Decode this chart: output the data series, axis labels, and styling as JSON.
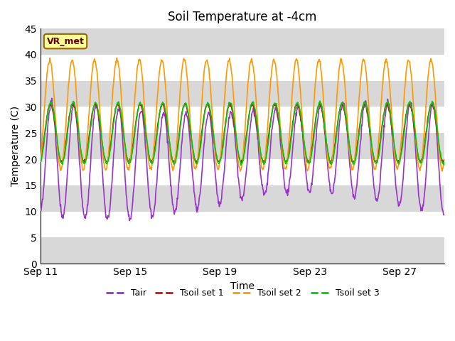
{
  "title": "Soil Temperature at -4cm",
  "xlabel": "Time",
  "ylabel": "Temperature (C)",
  "ylim": [
    0,
    45
  ],
  "yticks": [
    0,
    5,
    10,
    15,
    20,
    25,
    30,
    35,
    40,
    45
  ],
  "xtick_labels": [
    "Sep 11",
    "Sep 15",
    "Sep 19",
    "Sep 23",
    "Sep 27"
  ],
  "xtick_positions": [
    0,
    4,
    8,
    12,
    16
  ],
  "days": 18,
  "color_tair": "#9933cc",
  "color_tsoil1": "#cc1111",
  "color_tsoil2": "#ff9900",
  "color_tsoil3": "#00cc00",
  "legend_labels": [
    "Tair",
    "Tsoil set 1",
    "Tsoil set 2",
    "Tsoil set 3"
  ],
  "annotation_text": "VR_met",
  "annotation_box_facecolor": "#ffff99",
  "annotation_text_color": "#660000",
  "annotation_edge_color": "#996600",
  "band_color": "#d8d8d8",
  "band_ranges": [
    [
      0,
      5
    ],
    [
      10,
      15
    ],
    [
      20,
      25
    ],
    [
      30,
      35
    ],
    [
      40,
      45
    ]
  ],
  "fig_bg": "#ffffff",
  "line_width": 1.2
}
